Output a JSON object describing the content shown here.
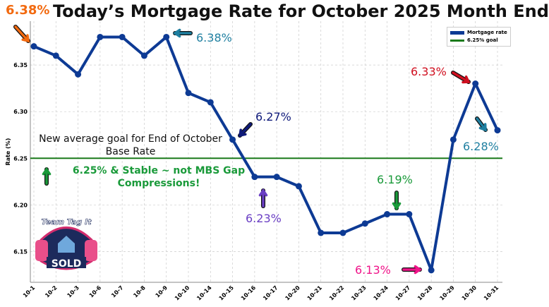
{
  "chart_data": {
    "type": "line",
    "title": "Today’s Mortgage Rate for October 2025 Month End",
    "xlabel": "",
    "ylabel": "Rate (%)",
    "categories": [
      "10-1",
      "10-2",
      "10-3",
      "10-6",
      "10-7",
      "10-8",
      "10-9",
      "10-10",
      "10-14",
      "10-15",
      "10-16",
      "10-17",
      "10-20",
      "10-21",
      "10-22",
      "10-23",
      "10-24",
      "10-27",
      "10-28",
      "10-29",
      "10-30",
      "10-31"
    ],
    "series": [
      {
        "name": "Mortgage rate",
        "color": "#0d3a94",
        "values": [
          6.37,
          6.36,
          6.34,
          6.38,
          6.38,
          6.36,
          6.38,
          6.32,
          6.31,
          6.27,
          6.23,
          6.23,
          6.22,
          6.17,
          6.17,
          6.18,
          6.19,
          6.19,
          6.13,
          6.27,
          6.33,
          6.28
        ]
      }
    ],
    "reference_lines": [
      {
        "name": "6.25% goal",
        "value": 6.25,
        "color": "#1a7a1a"
      }
    ],
    "yticks": [
      "6.15",
      "6.20",
      "6.25",
      "6.30",
      "6.35"
    ],
    "ylim": [
      6.117,
      6.397
    ],
    "grid": true,
    "legend": "top-right",
    "annotations": [
      {
        "text": "6.38%",
        "color": "#f26a10"
      },
      {
        "text": "6.38%",
        "color": "#1f7fa0"
      },
      {
        "text": "6.27%",
        "color": "#0f1a7a"
      },
      {
        "text": "6.23%",
        "color": "#6a3fc4"
      },
      {
        "text": "6.19%",
        "color": "#1a9a3a"
      },
      {
        "text": "6.13%",
        "color": "#f0158a"
      },
      {
        "text": "6.33%",
        "color": "#d01020"
      },
      {
        "text": "6.28%",
        "color": "#1f7fa0"
      }
    ],
    "notes": {
      "goal_line1": "New average goal for End of October",
      "goal_line2": "Base Rate",
      "stable_line1": "6.25% & Stable ~ not MBS Gap",
      "stable_line2": "Compressions!"
    },
    "logo": {
      "text_top": "Team Tag It",
      "text_bottom": "SOLD"
    }
  }
}
